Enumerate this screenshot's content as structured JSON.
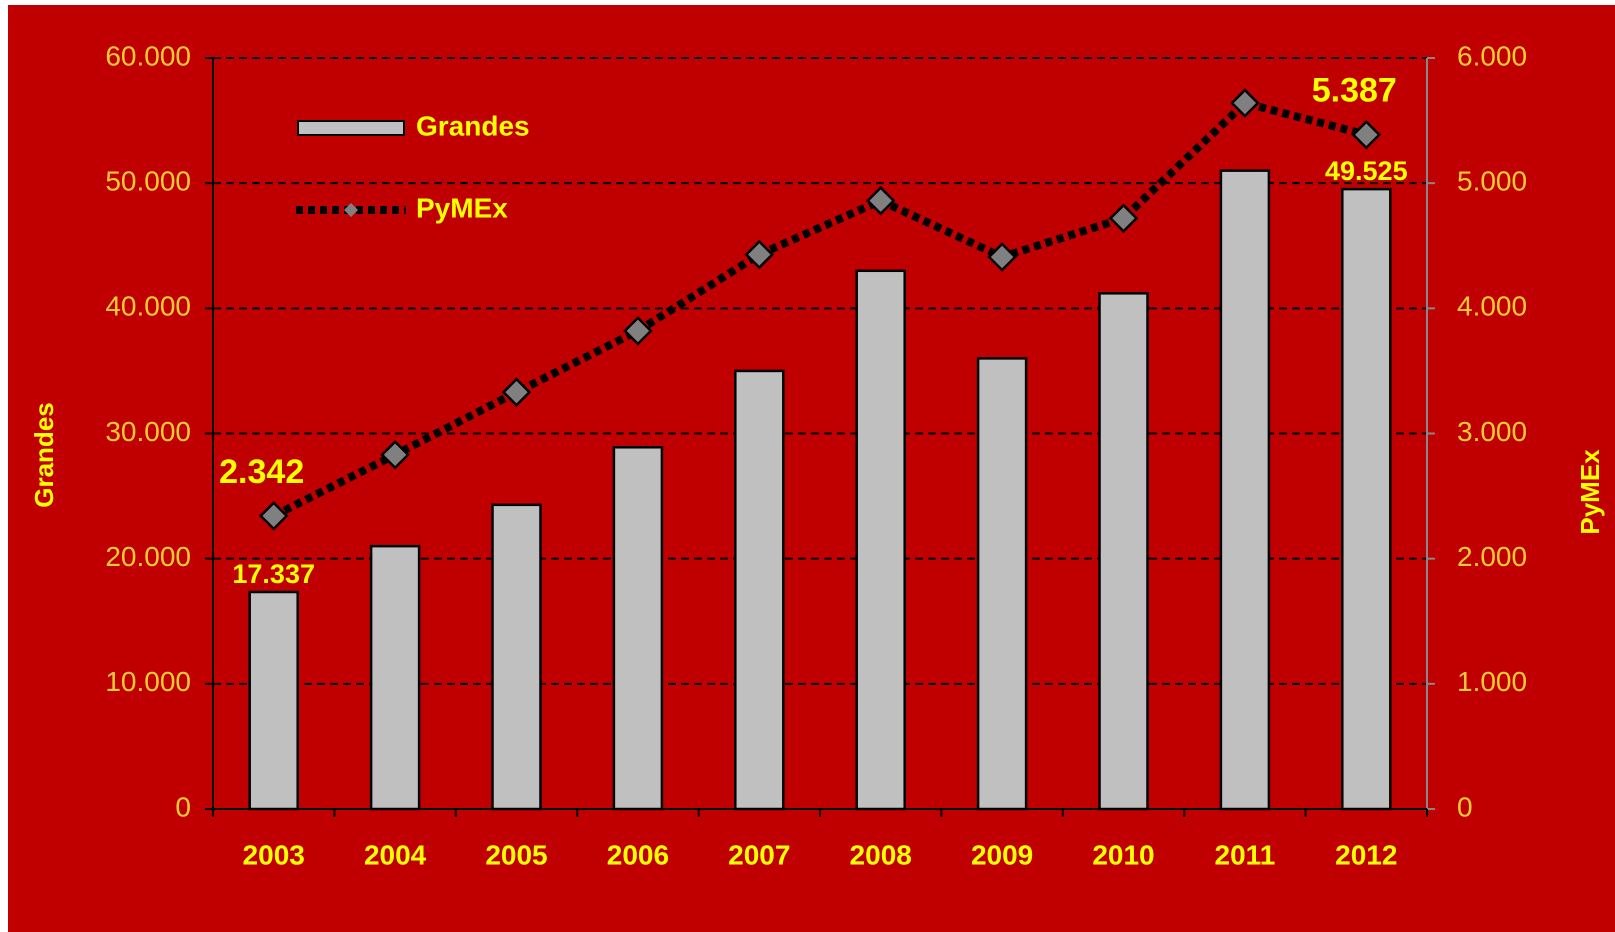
{
  "chart_data": {
    "type": "bar-line",
    "categories": [
      "2003",
      "2004",
      "2005",
      "2006",
      "2007",
      "2008",
      "2009",
      "2010",
      "2011",
      "2012"
    ],
    "series": [
      {
        "name": "Grandes",
        "type": "bar",
        "axis": "y",
        "color": "#c0c0c0",
        "values": [
          17337,
          21000,
          24300,
          28900,
          35000,
          43000,
          36000,
          41200,
          51000,
          49525
        ],
        "value_labels": [
          "17.337",
          null,
          null,
          null,
          null,
          null,
          null,
          null,
          null,
          "49.525"
        ]
      },
      {
        "name": "PyMEx",
        "type": "line",
        "axis": "y2",
        "color": "#000000",
        "marker_color": "#808080",
        "values": [
          2342,
          2830,
          3330,
          3820,
          4430,
          4860,
          4410,
          4720,
          5640,
          5387
        ],
        "value_labels": [
          "2.342",
          null,
          null,
          null,
          null,
          null,
          null,
          null,
          null,
          "5.387"
        ]
      }
    ],
    "ylabel": "Grandes",
    "y2label": "PyMEx",
    "ylim": [
      0,
      60000
    ],
    "yticks": [
      0,
      {
        "value": 10000,
        "label": "10.000"
      },
      {
        "value": 20000,
        "label": "20.000"
      },
      {
        "value": 30000,
        "label": "30.000"
      },
      {
        "value": 40000,
        "label": "40.000"
      },
      {
        "value": 50000,
        "label": "50.000"
      },
      {
        "value": 60000,
        "label": "60.000"
      }
    ],
    "y2lim": [
      0,
      6000
    ],
    "y2ticks": [
      0,
      {
        "value": 1000,
        "label": "1.000"
      },
      {
        "value": 2000,
        "label": "2.000"
      },
      {
        "value": 3000,
        "label": "3.000"
      },
      {
        "value": 4000,
        "label": "4.000"
      },
      {
        "value": 5000,
        "label": "5.000"
      },
      {
        "value": 6000,
        "label": "6.000"
      }
    ],
    "grid": true,
    "legend": "upper left",
    "background": "#c00000"
  }
}
